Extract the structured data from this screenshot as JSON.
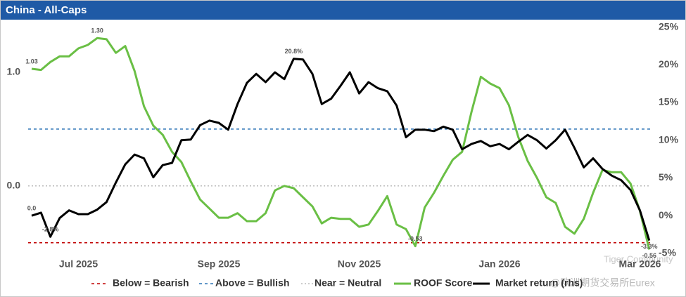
{
  "chart_data": {
    "type": "line",
    "title": "China - All-Caps",
    "categories": [
      null,
      null,
      null,
      null,
      null,
      "Jul 2025",
      null,
      null,
      null,
      null,
      null,
      null,
      null,
      null,
      null,
      null,
      null,
      null,
      null,
      null,
      "Sep 2025",
      null,
      null,
      null,
      null,
      null,
      null,
      null,
      null,
      null,
      null,
      null,
      null,
      null,
      null,
      "Nov 2025",
      null,
      null,
      null,
      null,
      null,
      null,
      null,
      null,
      null,
      null,
      null,
      null,
      null,
      null,
      "Jan 2026",
      null,
      null,
      null,
      null,
      null,
      null,
      null,
      null,
      null,
      null,
      null,
      null,
      null,
      null,
      "Mar 2026",
      null
    ],
    "series": [
      {
        "name": "ROOF Score",
        "color": "#6abf45",
        "axis": "y",
        "values": [
          1.03,
          1.02,
          1.09,
          1.14,
          1.14,
          1.21,
          1.24,
          1.3,
          1.29,
          1.17,
          1.23,
          1.01,
          0.7,
          0.53,
          0.45,
          0.3,
          0.21,
          0.04,
          -0.12,
          -0.2,
          -0.28,
          -0.28,
          -0.24,
          -0.31,
          -0.31,
          -0.24,
          -0.04,
          0,
          -0.02,
          -0.1,
          -0.18,
          -0.33,
          -0.28,
          -0.29,
          -0.29,
          -0.36,
          -0.34,
          -0.22,
          -0.09,
          -0.34,
          -0.38,
          -0.53,
          -0.19,
          -0.06,
          0.09,
          0.23,
          0.3,
          0.65,
          0.96,
          0.9,
          0.86,
          0.71,
          0.43,
          0.22,
          0.07,
          -0.1,
          -0.15,
          -0.36,
          -0.42,
          -0.29,
          -0.06,
          0.14,
          0.12,
          0.12,
          0.02,
          -0.22,
          -0.56
        ],
        "value_labels": [
          "1.03",
          null,
          null,
          null,
          null,
          null,
          null,
          "1.30",
          null,
          null,
          null,
          null,
          null,
          null,
          null,
          null,
          null,
          null,
          null,
          null,
          null,
          null,
          null,
          null,
          null,
          null,
          null,
          null,
          null,
          null,
          null,
          null,
          null,
          null,
          null,
          null,
          null,
          null,
          null,
          null,
          null,
          "-0.53",
          null,
          null,
          null,
          null,
          null,
          null,
          null,
          null,
          null,
          null,
          null,
          null,
          null,
          null,
          null,
          null,
          null,
          null,
          null,
          null,
          null,
          null,
          null,
          null,
          "-0.56"
        ]
      },
      {
        "name": "Market return (rhs)",
        "color": "#000000",
        "axis": "y2",
        "values": [
          0,
          0.4,
          -2.8,
          -0.3,
          0.7,
          0.2,
          0.2,
          0.8,
          1.8,
          4.4,
          6.8,
          8.1,
          7.6,
          5.1,
          6.7,
          7,
          10,
          10.1,
          12,
          12.6,
          12.3,
          11.4,
          14.8,
          17.6,
          18.8,
          17.7,
          19,
          18.1,
          20.8,
          20.7,
          18.8,
          14.8,
          15.5,
          17.2,
          19,
          16.2,
          17.7,
          16.9,
          16.5,
          14.6,
          10.4,
          11.4,
          11.4,
          11.2,
          11.8,
          11.4,
          8.8,
          9.5,
          9.9,
          9.2,
          9.5,
          8.8,
          9.8,
          10.7,
          10,
          8.9,
          10,
          11.4,
          9,
          6.4,
          7.6,
          6.2,
          5.3,
          4.7,
          3.4,
          0.7,
          -3.3
        ],
        "value_labels": [
          "0.0",
          null,
          "-2.8%",
          null,
          null,
          null,
          null,
          null,
          null,
          null,
          null,
          null,
          null,
          null,
          null,
          null,
          null,
          null,
          null,
          null,
          null,
          null,
          null,
          null,
          null,
          null,
          null,
          null,
          "20.8%",
          null,
          null,
          null,
          null,
          null,
          null,
          null,
          null,
          null,
          null,
          null,
          null,
          null,
          null,
          null,
          null,
          null,
          null,
          null,
          null,
          null,
          null,
          null,
          null,
          null,
          null,
          null,
          null,
          null,
          null,
          null,
          null,
          null,
          null,
          null,
          null,
          null,
          "-3.3%"
        ]
      }
    ],
    "reference_lines": [
      {
        "name": "Below = Bearish",
        "value": -0.5,
        "color": "#c00000",
        "style": "dashed"
      },
      {
        "name": "Above = Bullish",
        "value": 0.5,
        "color": "#2e75b6",
        "style": "dashed"
      },
      {
        "name": "Near = Neutral",
        "value": 0,
        "color": "#bbbbbb",
        "style": "dotted"
      }
    ],
    "ylim": [
      -0.65,
      1.45
    ],
    "yticks": [
      {
        "value": 0,
        "label": "0.0"
      },
      {
        "value": 1,
        "label": "1.0"
      }
    ],
    "y2lim": [
      -5.85,
      25.8
    ],
    "y2ticks": [
      {
        "value": -5,
        "label": "-5%"
      },
      {
        "value": 0,
        "label": "0%"
      },
      {
        "value": 5,
        "label": "5%"
      },
      {
        "value": 10,
        "label": "10%"
      },
      {
        "value": 15,
        "label": "15%"
      },
      {
        "value": 20,
        "label": "20%"
      },
      {
        "value": 25,
        "label": "25%"
      }
    ],
    "legend": "bottom",
    "watermarks": [
      "Tiger Community",
      "@欧洲期货交易所Eurex"
    ]
  }
}
